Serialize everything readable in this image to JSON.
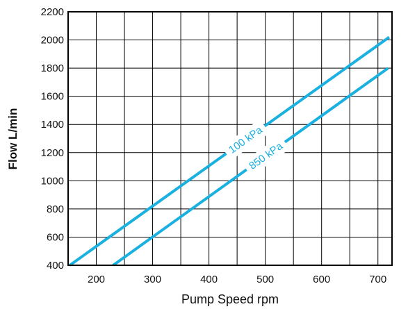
{
  "chart_data": {
    "type": "line",
    "title": "",
    "xlabel": "Pump Speed rpm",
    "ylabel": "Flow L/min",
    "xlim": [
      150,
      725
    ],
    "ylim": [
      400,
      2200
    ],
    "xticks": [
      200,
      300,
      400,
      500,
      600,
      700
    ],
    "yticks": [
      400,
      600,
      800,
      1000,
      1200,
      1400,
      1600,
      1800,
      2000,
      2200
    ],
    "x_gridlines": [
      200,
      250,
      300,
      350,
      400,
      450,
      500,
      550,
      600,
      650,
      700
    ],
    "grid": true,
    "line_color": "#1ab0e0",
    "series": [
      {
        "name": "100 kPa",
        "x": [
          153,
          720
        ],
        "y": [
          400,
          2020
        ]
      },
      {
        "name": "850 kPa",
        "x": [
          230,
          718
        ],
        "y": [
          400,
          1800
        ]
      }
    ]
  }
}
